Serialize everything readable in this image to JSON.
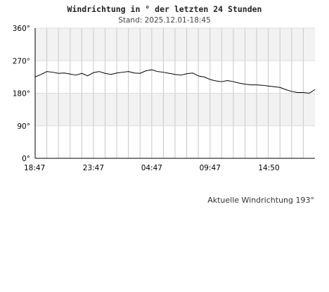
{
  "chart_data": {
    "type": "line",
    "title": "Windrichtung in ° der letzten 24 Stunden",
    "subtitle": "Stand: 2025.12.01-18:45",
    "unit": "°",
    "ylim": [
      0,
      360
    ],
    "y_ticks": [
      "0°",
      "90°",
      "180°",
      "270°",
      "360°"
    ],
    "y_tick_values": [
      0,
      90,
      180,
      270,
      360
    ],
    "xlim_hours": [
      0,
      24
    ],
    "x_tick_labels": [
      "18:47",
      "23:47",
      "04:47",
      "09:47",
      "14:50"
    ],
    "x_tick_hours": [
      0,
      5,
      10,
      15,
      20.05
    ],
    "grid": true,
    "alternating_bands": true,
    "colors": {
      "line": "#000000",
      "band": "#f2f2f2",
      "grid": "#c8c8c8",
      "axis": "#000000"
    },
    "series": [
      {
        "x_hours": [
          0,
          0.5,
          1,
          1.5,
          2,
          2.5,
          3,
          3.5,
          4,
          4.5,
          5,
          5.5,
          6,
          6.5,
          7,
          7.5,
          8,
          8.5,
          9,
          9.5,
          10,
          10.5,
          11,
          11.5,
          12,
          12.5,
          13,
          13.5,
          14,
          14.5,
          15,
          15.5,
          16,
          16.5,
          17,
          17.5,
          18,
          18.5,
          19,
          19.5,
          20,
          20.5,
          21,
          21.5,
          22,
          22.5,
          23,
          23.5,
          24
        ],
        "values": [
          225,
          232,
          240,
          238,
          235,
          236,
          233,
          230,
          235,
          228,
          237,
          240,
          235,
          232,
          236,
          238,
          240,
          236,
          235,
          242,
          245,
          240,
          238,
          235,
          232,
          230,
          234,
          236,
          228,
          225,
          218,
          214,
          212,
          215,
          212,
          208,
          205,
          203,
          203,
          202,
          200,
          198,
          196,
          190,
          185,
          182,
          182,
          180,
          190
        ]
      }
    ]
  },
  "current": {
    "label": "Aktuelle Windrichtung 193°"
  }
}
